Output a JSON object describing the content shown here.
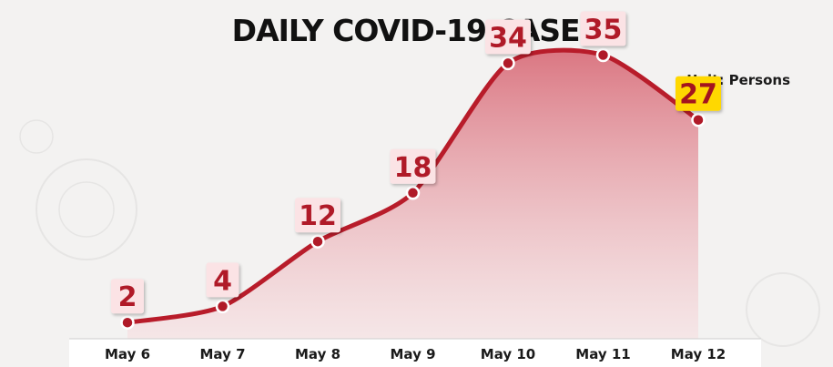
{
  "chart_data": {
    "type": "area",
    "title": "DAILY COVID-19 CASES",
    "unit_label": "Unit: Persons",
    "categories": [
      "May 6",
      "May 7",
      "May 8",
      "May 9",
      "May 10",
      "May 11",
      "May 12"
    ],
    "series": [
      {
        "values": [
          2,
          4,
          12,
          18,
          34,
          35,
          27
        ]
      }
    ],
    "data_labels": [
      "2",
      "4",
      "12",
      "18",
      "34",
      "35",
      "27"
    ],
    "highlight_index": 6,
    "ylim": [
      0,
      40
    ],
    "grid": false,
    "colors": {
      "line": "#b81c2a",
      "marker": "#b01a28",
      "fill_top": "#d9707c",
      "fill_bottom": "#f7dadd",
      "label_box": "#fbe3e5",
      "label_text": "#b01a28",
      "highlight_box": "#ffd800",
      "highlight_text": "#a3141f",
      "axis_bar": "#ffffff",
      "background": "#f3f2f1"
    }
  }
}
